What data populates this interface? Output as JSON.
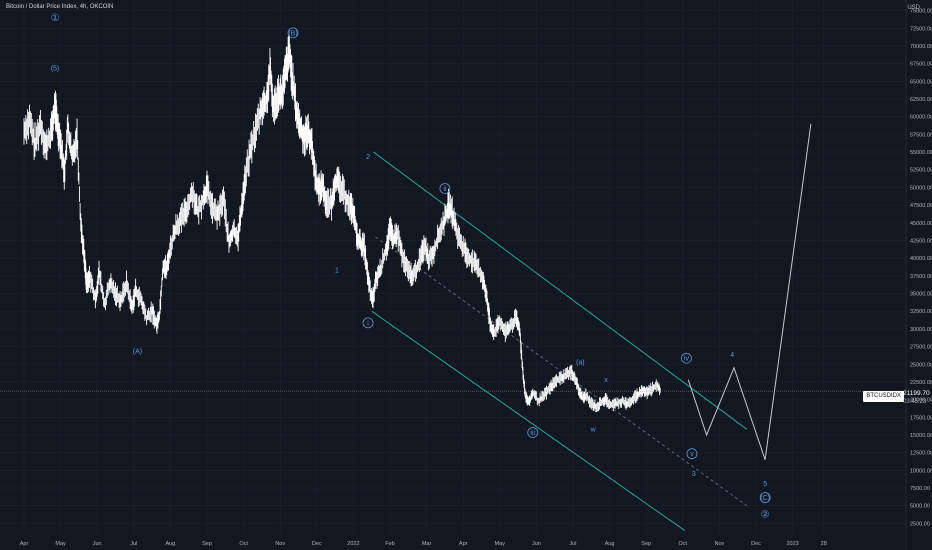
{
  "header": {
    "symbol_title": "Bitcoin / Dollar Price Index, 4h, OKCOIN",
    "currency": "USD"
  },
  "price_marker": {
    "ticker": "BTCUSDIDX",
    "price": "21199.70",
    "countdown": "03:45:23"
  },
  "colors": {
    "background": "#131722",
    "candles": "#ffffff",
    "channel": "#26a69a",
    "wave_labels": "#5b9bd5",
    "projection": "#c8c8d2",
    "axis_text": "#b2b5be"
  },
  "chart_data": {
    "type": "candlestick",
    "title": "Bitcoin / Dollar Price Index, 4h, OKCOIN",
    "ylabel": "USD",
    "ylim": [
      1000,
      76500
    ],
    "y_ticks": [
      2500,
      5000,
      7500,
      10000,
      12500,
      15000,
      17500,
      20000,
      22500,
      25000,
      27500,
      30000,
      32500,
      35000,
      37500,
      40000,
      42500,
      45000,
      47500,
      50000,
      52500,
      55000,
      57500,
      60000,
      62500,
      65000,
      67500,
      70000,
      72500,
      75000
    ],
    "x_ticks": [
      "Apr",
      "May",
      "Jun",
      "Jul",
      "Aug",
      "Sep",
      "Oct",
      "Nov",
      "Dec",
      "2022",
      "Feb",
      "Mar",
      "Apr",
      "May",
      "Jun",
      "Jul",
      "Aug",
      "Sep",
      "Oct",
      "Nov",
      "Dec",
      "2023",
      "28"
    ],
    "x_tick_month_index": [
      0,
      1,
      2,
      3,
      4,
      5,
      6,
      7,
      8,
      9,
      10,
      11,
      12,
      13,
      14,
      15,
      16,
      17,
      18,
      19,
      20,
      21,
      21.85
    ],
    "price_series": [
      [
        0,
        58000
      ],
      [
        0.15,
        59500
      ],
      [
        0.3,
        56000
      ],
      [
        0.45,
        59000
      ],
      [
        0.6,
        55500
      ],
      [
        0.75,
        58000
      ],
      [
        0.85,
        61500
      ],
      [
        0.92,
        58500
      ],
      [
        1.0,
        56500
      ],
      [
        1.1,
        52000
      ],
      [
        1.2,
        58500
      ],
      [
        1.32,
        54000
      ],
      [
        1.45,
        57500
      ],
      [
        1.55,
        45000
      ],
      [
        1.65,
        40000
      ],
      [
        1.72,
        36000
      ],
      [
        1.8,
        37500
      ],
      [
        1.95,
        34000
      ],
      [
        2.05,
        38000
      ],
      [
        2.2,
        33500
      ],
      [
        2.35,
        36500
      ],
      [
        2.5,
        35000
      ],
      [
        2.65,
        34000
      ],
      [
        2.8,
        36500
      ],
      [
        2.95,
        33000
      ],
      [
        3.05,
        35500
      ],
      [
        3.2,
        34000
      ],
      [
        3.35,
        31500
      ],
      [
        3.5,
        32500
      ],
      [
        3.62,
        30500
      ],
      [
        3.7,
        32000
      ],
      [
        3.8,
        39000
      ],
      [
        3.9,
        38500
      ],
      [
        4.0,
        41500
      ],
      [
        4.15,
        44500
      ],
      [
        4.3,
        45500
      ],
      [
        4.45,
        47000
      ],
      [
        4.6,
        49500
      ],
      [
        4.75,
        46500
      ],
      [
        4.9,
        48500
      ],
      [
        5.0,
        50000
      ],
      [
        5.15,
        47000
      ],
      [
        5.3,
        46000
      ],
      [
        5.45,
        48500
      ],
      [
        5.6,
        42000
      ],
      [
        5.72,
        44000
      ],
      [
        5.85,
        43000
      ],
      [
        5.95,
        47500
      ],
      [
        6.05,
        51500
      ],
      [
        6.2,
        55500
      ],
      [
        6.35,
        58500
      ],
      [
        6.5,
        61500
      ],
      [
        6.62,
        62000
      ],
      [
        6.72,
        66500
      ],
      [
        6.82,
        61000
      ],
      [
        6.95,
        63500
      ],
      [
        7.05,
        63000
      ],
      [
        7.15,
        66500
      ],
      [
        7.25,
        69000
      ],
      [
        7.35,
        64500
      ],
      [
        7.45,
        60500
      ],
      [
        7.55,
        58500
      ],
      [
        7.65,
        57000
      ],
      [
        7.75,
        58000
      ],
      [
        7.85,
        56500
      ],
      [
        7.95,
        52000
      ],
      [
        8.05,
        49500
      ],
      [
        8.15,
        50500
      ],
      [
        8.25,
        48000
      ],
      [
        8.4,
        47500
      ],
      [
        8.5,
        51000
      ],
      [
        8.6,
        50500
      ],
      [
        8.75,
        49000
      ],
      [
        8.9,
        47500
      ],
      [
        9.0,
        46500
      ],
      [
        9.1,
        43000
      ],
      [
        9.2,
        42000
      ],
      [
        9.3,
        41500
      ],
      [
        9.4,
        37000
      ],
      [
        9.52,
        33800
      ],
      [
        9.62,
        37000
      ],
      [
        9.75,
        38500
      ],
      [
        9.9,
        41500
      ],
      [
        10.0,
        44000
      ],
      [
        10.1,
        42500
      ],
      [
        10.2,
        43500
      ],
      [
        10.35,
        40000
      ],
      [
        10.5,
        38000
      ],
      [
        10.65,
        37500
      ],
      [
        10.8,
        39500
      ],
      [
        10.95,
        42000
      ],
      [
        11.05,
        40000
      ],
      [
        11.2,
        41000
      ],
      [
        11.35,
        43500
      ],
      [
        11.5,
        45500
      ],
      [
        11.6,
        47500
      ],
      [
        11.7,
        46500
      ],
      [
        11.8,
        44000
      ],
      [
        11.95,
        42000
      ],
      [
        12.1,
        40500
      ],
      [
        12.25,
        39500
      ],
      [
        12.4,
        38500
      ],
      [
        12.55,
        37000
      ],
      [
        12.65,
        34000
      ],
      [
        12.75,
        30500
      ],
      [
        12.85,
        29500
      ],
      [
        13.0,
        31000
      ],
      [
        13.15,
        29500
      ],
      [
        13.3,
        30500
      ],
      [
        13.45,
        31500
      ],
      [
        13.55,
        29500
      ],
      [
        13.62,
        24500
      ],
      [
        13.7,
        20500
      ],
      [
        13.8,
        19500
      ],
      [
        13.9,
        21000
      ],
      [
        14.05,
        19800
      ],
      [
        14.2,
        20500
      ],
      [
        14.35,
        21500
      ],
      [
        14.5,
        22500
      ],
      [
        14.65,
        23000
      ],
      [
        14.8,
        23500
      ],
      [
        14.95,
        24000
      ],
      [
        15.05,
        23000
      ],
      [
        15.15,
        21500
      ],
      [
        15.25,
        20200
      ],
      [
        15.35,
        20500
      ],
      [
        15.5,
        19500
      ],
      [
        15.65,
        19000
      ],
      [
        15.8,
        19800
      ],
      [
        15.9,
        20000
      ],
      [
        16.05,
        19200
      ],
      [
        16.2,
        19500
      ],
      [
        16.35,
        19800
      ],
      [
        16.5,
        19300
      ],
      [
        16.65,
        20200
      ],
      [
        16.8,
        20800
      ],
      [
        16.9,
        21300
      ],
      [
        17.0,
        21000
      ],
      [
        17.15,
        21500
      ],
      [
        17.3,
        22000
      ],
      [
        17.4,
        21200
      ]
    ],
    "waves_labels": [
      {
        "label": "①",
        "month": 0.85,
        "price": 73500,
        "circled": true
      },
      {
        "label": "(5)",
        "month": 0.85,
        "price": 66500,
        "circled": false
      },
      {
        "label": "(A)",
        "month": 3.1,
        "price": 26500,
        "circled": false
      },
      {
        "label": "(B)",
        "month": 7.35,
        "price": 71500,
        "circled": true
      },
      {
        "label": "1",
        "month": 8.55,
        "price": 38000,
        "circled": false
      },
      {
        "label": "2",
        "month": 9.4,
        "price": 54000,
        "circled": false
      },
      {
        "label": "i",
        "month": 9.4,
        "price": 30500,
        "circled": true
      },
      {
        "label": "ii",
        "month": 11.5,
        "price": 49500,
        "circled": true
      },
      {
        "label": "iii",
        "month": 13.9,
        "price": 15000,
        "circled": true
      },
      {
        "label": "(a)",
        "month": 15.2,
        "price": 25000,
        "circled": false
      },
      {
        "label": "x",
        "month": 15.9,
        "price": 22500,
        "circled": false
      },
      {
        "label": "w",
        "month": 15.55,
        "price": 15500,
        "circled": false
      },
      {
        "label": "iv",
        "month": 18.1,
        "price": 25500,
        "circled": true
      },
      {
        "label": "v",
        "month": 18.25,
        "price": 12000,
        "circled": true
      },
      {
        "label": "3",
        "month": 18.3,
        "price": 9200,
        "circled": false
      },
      {
        "label": "4",
        "month": 19.35,
        "price": 26000,
        "circled": false
      },
      {
        "label": "5",
        "month": 20.25,
        "price": 7800,
        "circled": false
      },
      {
        "label": "(C)",
        "month": 20.25,
        "price": 5800,
        "circled": true
      },
      {
        "label": "②",
        "month": 20.25,
        "price": 3300,
        "circled": true
      }
    ],
    "channel_upper": [
      [
        9.55,
        55000
      ],
      [
        19.75,
        15800
      ]
    ],
    "channel_lower": [
      [
        9.5,
        32500
      ],
      [
        18.05,
        1500
      ]
    ],
    "channel_mid_dashed": [
      [
        9.6,
        43000
      ],
      [
        19.75,
        5000
      ]
    ],
    "projection_path": [
      [
        18.15,
        22800
      ],
      [
        18.65,
        15000
      ],
      [
        19.4,
        24500
      ],
      [
        20.25,
        11500
      ],
      [
        21.5,
        59000
      ]
    ]
  }
}
